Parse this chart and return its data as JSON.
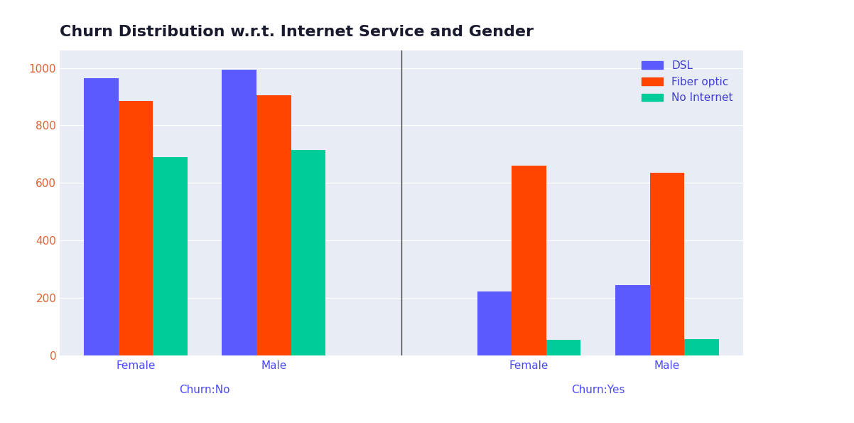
{
  "title": "Churn Distribution w.r.t. Internet Service and Gender",
  "groups": [
    "Female",
    "Male",
    "Female",
    "Male"
  ],
  "churn_labels": [
    "Churn:No",
    "Churn:Yes"
  ],
  "bar_labels": [
    "DSL",
    "Fiber optic",
    "No Internet"
  ],
  "values": {
    "DSL": [
      965,
      995,
      222,
      244
    ],
    "Fiber optic": [
      885,
      905,
      660,
      635
    ],
    "No Internet": [
      690,
      715,
      55,
      57
    ]
  },
  "colors": {
    "DSL": "#5a5aff",
    "Fiber optic": "#ff4500",
    "No Internet": "#00cc99"
  },
  "ylim": [
    0,
    1060
  ],
  "yticks": [
    0,
    200,
    400,
    600,
    800,
    1000
  ],
  "background_color": "#e8ecf5",
  "fig_bg_color": "#ffffff",
  "title_color": "#1a1a2e",
  "tick_color_y": "#e06030",
  "tick_color_x": "#4a4aff",
  "churn_label_color": "#4a4aff",
  "legend_label_color": "#4040cc",
  "bar_width": 0.25,
  "title_fontsize": 16,
  "legend_fontsize": 11,
  "tick_fontsize": 11
}
